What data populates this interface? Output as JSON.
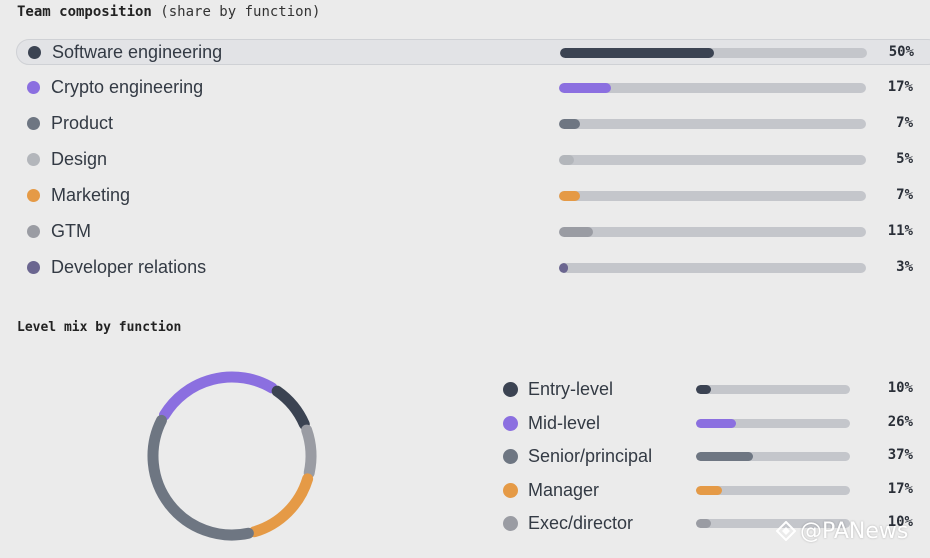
{
  "chart_data": [
    {
      "type": "bar",
      "title": "Team composition",
      "subtitle": "(share by function)",
      "categories": [
        "Software engineering",
        "Crypto engineering",
        "Product",
        "Design",
        "Marketing",
        "GTM",
        "Developer relations"
      ],
      "values": [
        50,
        17,
        7,
        5,
        7,
        11,
        3
      ],
      "value_labels": [
        "50%",
        "17%",
        "7%",
        "5%",
        "7%",
        "11%",
        "3%"
      ],
      "colors": [
        "#3b4352",
        "#8b6fe0",
        "#6e7682",
        "#b3b6bb",
        "#e59a46",
        "#9a9ca3",
        "#6b6690"
      ],
      "highlighted": "Software engineering",
      "ylim": [
        0,
        100
      ]
    },
    {
      "type": "pie",
      "title": "Level mix by function",
      "categories": [
        "Entry-level",
        "Mid-level",
        "Senior/principal",
        "Manager",
        "Exec/director"
      ],
      "values": [
        10,
        26,
        37,
        17,
        10
      ],
      "value_labels": [
        "10%",
        "26%",
        "37%",
        "17%",
        "10%"
      ],
      "colors": [
        "#3b4352",
        "#8b6fe0",
        "#6e7682",
        "#e59a46",
        "#9a9ca3"
      ],
      "donut_order": [
        "Mid-level",
        "Entry-level",
        "Exec/director",
        "Manager",
        "Senior/principal"
      ]
    }
  ],
  "watermark": "@PANews"
}
